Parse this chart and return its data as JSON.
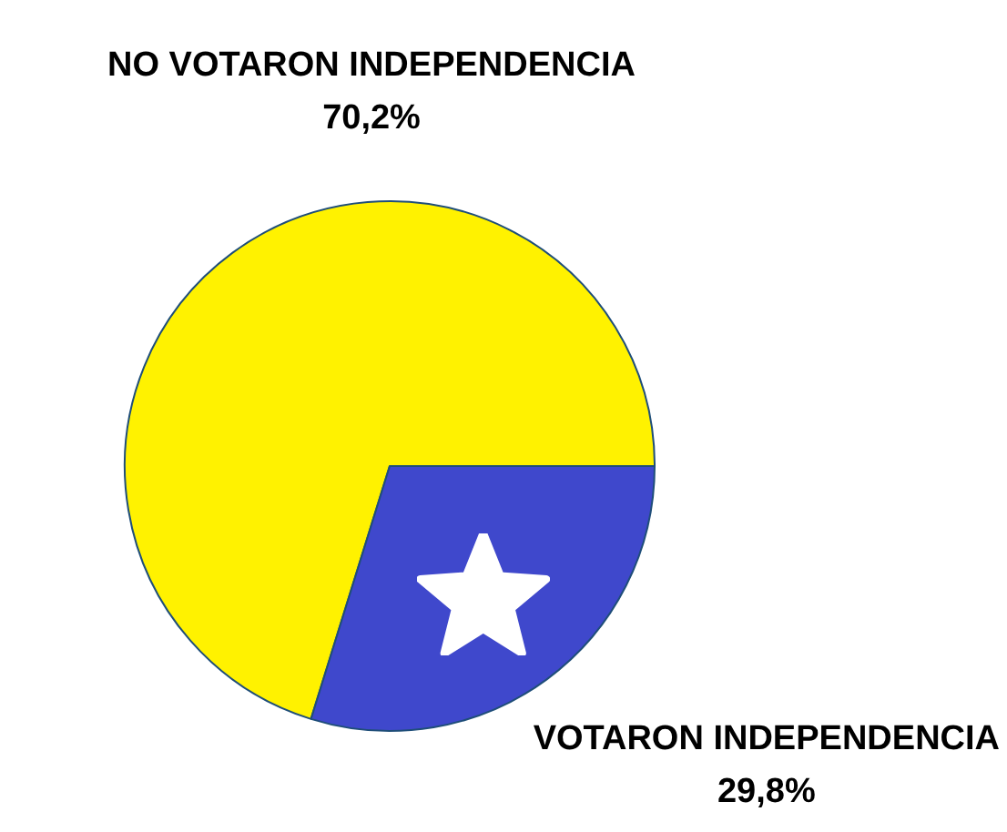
{
  "chart_data": {
    "type": "pie",
    "categories": [
      "NO VOTARON INDEPENDENCIA",
      "VOTARON INDEPENDENCIA"
    ],
    "values": [
      70.2,
      29.8
    ],
    "value_labels": [
      "70,2%",
      "29,8%"
    ],
    "colors": [
      "#fff200",
      "#3f48cc"
    ]
  }
}
